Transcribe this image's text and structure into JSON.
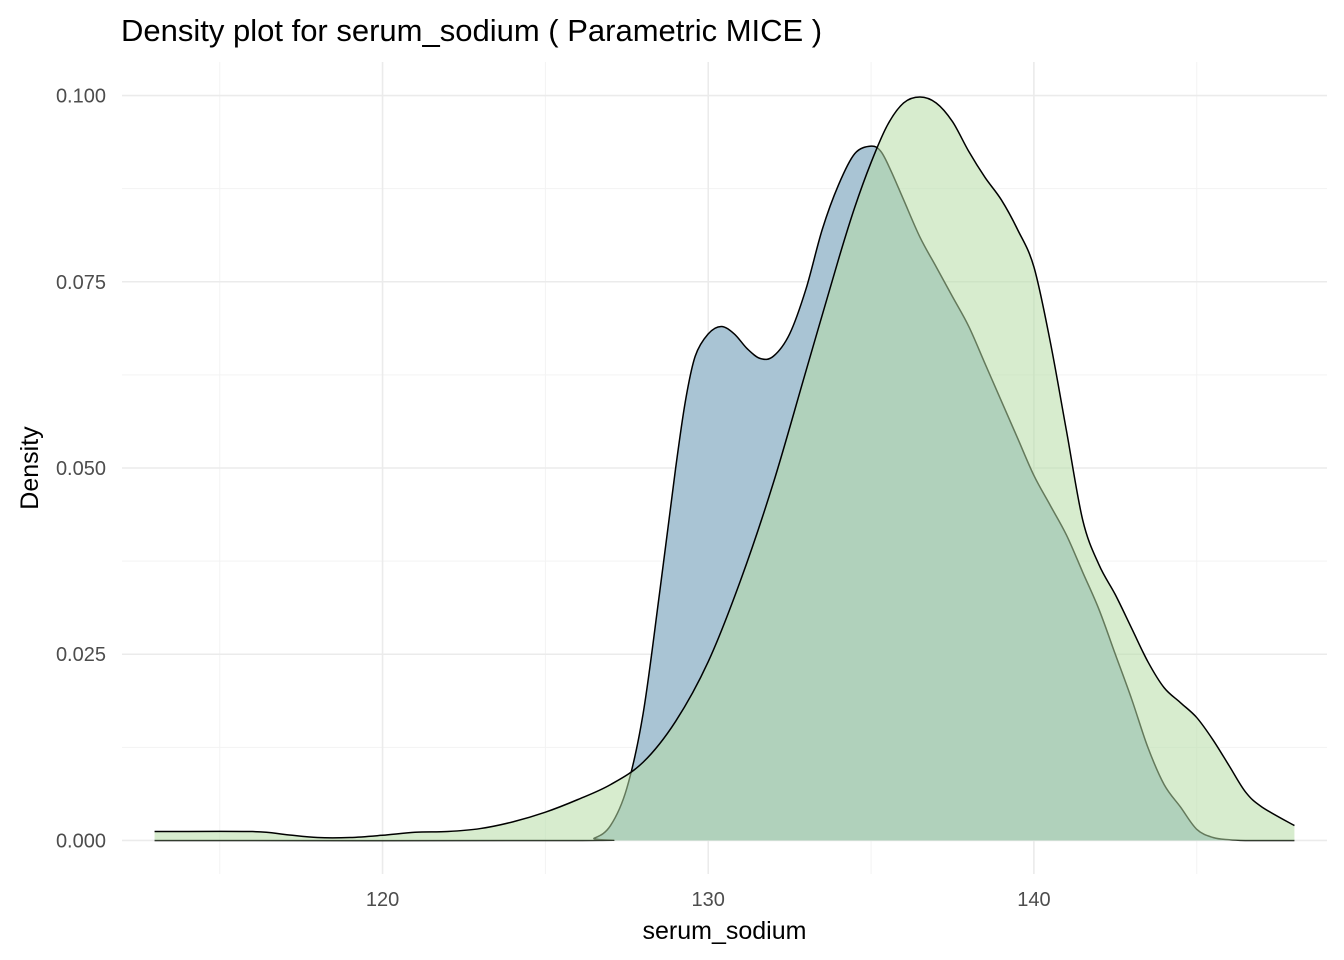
{
  "chart_data": {
    "type": "area",
    "title": "Density plot for serum_sodium ( Parametric MICE )",
    "xlabel": "serum_sodium",
    "ylabel": "Density",
    "xlim": [
      112,
      149
    ],
    "ylim": [
      -0.0045,
      0.1045
    ],
    "x_ticks": [
      120,
      130,
      140
    ],
    "x_tick_labels": [
      "120",
      "130",
      "140"
    ],
    "x_minor_ticks": [
      115,
      125,
      135,
      145
    ],
    "y_ticks": [
      0.0,
      0.025,
      0.05,
      0.075,
      0.1
    ],
    "y_tick_labels": [
      "0.000",
      "0.025",
      "0.050",
      "0.075",
      "0.100"
    ],
    "y_minor_ticks": [
      0.0125,
      0.0375,
      0.0625,
      0.0875
    ],
    "grid": true,
    "legend": "none",
    "series": [
      {
        "color": "#a9c4d4",
        "opacity": 1.0,
        "x": [
          113,
          126,
          126.5,
          127,
          127.5,
          128,
          128.5,
          129,
          129.3,
          129.6,
          130,
          130.4,
          130.8,
          131.2,
          131.6,
          132,
          132.5,
          133,
          133.5,
          134,
          134.5,
          135,
          135.3,
          135.6,
          136,
          136.5,
          137,
          137.5,
          138,
          138.5,
          139,
          139.5,
          140,
          140.5,
          141,
          141.5,
          142,
          142.5,
          143,
          143.5,
          144,
          144.5,
          145,
          145.5,
          146,
          146.5,
          147,
          148
        ],
        "y": [
          0,
          0,
          0.0003,
          0.002,
          0.007,
          0.017,
          0.033,
          0.05,
          0.059,
          0.065,
          0.068,
          0.069,
          0.068,
          0.066,
          0.0647,
          0.065,
          0.068,
          0.074,
          0.082,
          0.088,
          0.0922,
          0.0932,
          0.0925,
          0.09,
          0.086,
          0.081,
          0.077,
          0.073,
          0.069,
          0.064,
          0.059,
          0.054,
          0.049,
          0.045,
          0.041,
          0.036,
          0.031,
          0.025,
          0.019,
          0.0125,
          0.0075,
          0.0045,
          0.0015,
          0.0004,
          0.0001,
          0,
          0,
          0
        ]
      },
      {
        "color": "#b7dca6",
        "opacity": 0.55,
        "x": [
          113,
          116,
          117,
          118,
          119,
          120,
          121,
          122,
          123,
          124,
          125,
          126,
          127,
          128,
          129,
          130,
          131,
          132,
          133,
          134,
          134.5,
          135,
          135.5,
          136,
          136.5,
          137,
          137.5,
          138,
          138.5,
          139,
          139.5,
          140,
          140.5,
          141,
          141.5,
          142,
          142.5,
          143,
          143.5,
          144,
          144.5,
          145,
          145.5,
          146,
          146.5,
          147,
          148
        ],
        "y": [
          0.0012,
          0.0012,
          0.0008,
          0.0004,
          0.0004,
          0.0007,
          0.0011,
          0.0012,
          0.0016,
          0.0025,
          0.0038,
          0.0055,
          0.0075,
          0.0105,
          0.016,
          0.024,
          0.035,
          0.048,
          0.063,
          0.078,
          0.085,
          0.091,
          0.096,
          0.099,
          0.0998,
          0.099,
          0.0965,
          0.0925,
          0.089,
          0.086,
          0.082,
          0.077,
          0.067,
          0.055,
          0.043,
          0.037,
          0.033,
          0.0285,
          0.024,
          0.0205,
          0.0185,
          0.0165,
          0.0135,
          0.01,
          0.0065,
          0.0045,
          0.002
        ]
      }
    ]
  }
}
